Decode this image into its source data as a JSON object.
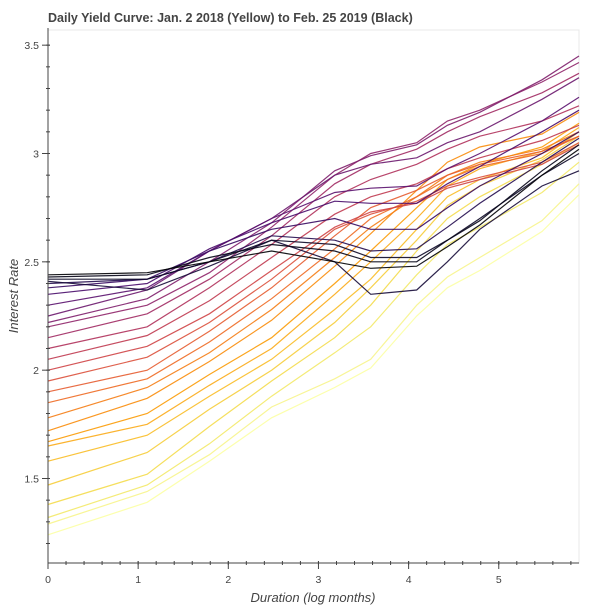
{
  "chart_data": {
    "type": "line",
    "title": "Daily Yield Curve: Jan. 2 2018 (Yellow) to Feb. 25 2019 (Black)",
    "xlabel": "Duration (log months)",
    "ylabel": "Interest Rate",
    "xlim": [
      0,
      5.89
    ],
    "ylim": [
      1.11,
      3.57
    ],
    "x_ticks": [
      "0",
      "1",
      "2",
      "3",
      "4",
      "5"
    ],
    "y_ticks": [
      "1.5",
      "2",
      "2.5",
      "3",
      "3.5"
    ],
    "grid": false,
    "legend": "none",
    "x": [
      0,
      1.1,
      1.79,
      2.48,
      3.18,
      3.58,
      4.09,
      4.43,
      4.79,
      5.48,
      5.89
    ],
    "series": [
      {
        "color": "#fcffa4",
        "values": [
          1.24,
          1.39,
          1.58,
          1.78,
          1.92,
          2.01,
          2.25,
          2.38,
          2.46,
          2.64,
          2.81
        ]
      },
      {
        "color": "#f7f48c",
        "values": [
          1.29,
          1.44,
          1.61,
          1.83,
          1.96,
          2.05,
          2.3,
          2.43,
          2.52,
          2.69,
          2.86
        ]
      },
      {
        "color": "#f3e968",
        "values": [
          1.32,
          1.47,
          1.66,
          1.88,
          2.08,
          2.2,
          2.44,
          2.58,
          2.66,
          2.82,
          2.96
        ]
      },
      {
        "color": "#f4dc4d",
        "values": [
          1.38,
          1.52,
          1.74,
          1.95,
          2.15,
          2.3,
          2.55,
          2.7,
          2.8,
          2.95,
          3.05
        ]
      },
      {
        "color": "#f6cd3a",
        "values": [
          1.47,
          1.62,
          1.82,
          2.0,
          2.22,
          2.38,
          2.6,
          2.76,
          2.85,
          2.97,
          3.08
        ]
      },
      {
        "color": "#f9bd26",
        "values": [
          1.58,
          1.7,
          1.88,
          2.05,
          2.28,
          2.42,
          2.65,
          2.8,
          2.88,
          2.98,
          3.1
        ]
      },
      {
        "color": "#fbab18",
        "values": [
          1.65,
          1.75,
          1.93,
          2.1,
          2.35,
          2.5,
          2.7,
          2.85,
          2.93,
          3.01,
          3.12
        ]
      },
      {
        "color": "#fb9b06",
        "values": [
          1.67,
          1.8,
          1.98,
          2.15,
          2.4,
          2.55,
          2.75,
          2.88,
          2.95,
          3.03,
          3.14
        ]
      },
      {
        "color": "#f98c0a",
        "values": [
          1.72,
          1.87,
          2.04,
          2.23,
          2.48,
          2.63,
          2.83,
          2.96,
          3.03,
          3.09,
          3.19
        ]
      },
      {
        "color": "#f57d15",
        "values": [
          1.78,
          1.92,
          2.08,
          2.28,
          2.52,
          2.66,
          2.8,
          2.9,
          2.96,
          3.02,
          3.1
        ]
      },
      {
        "color": "#ee6a24",
        "values": [
          1.85,
          1.96,
          2.13,
          2.33,
          2.56,
          2.7,
          2.8,
          2.88,
          2.94,
          3.0,
          3.08
        ]
      },
      {
        "color": "#e55c30",
        "values": [
          1.9,
          2.0,
          2.18,
          2.38,
          2.62,
          2.75,
          2.83,
          2.9,
          2.95,
          3.01,
          3.08
        ]
      },
      {
        "color": "#db503b",
        "values": [
          1.95,
          2.06,
          2.22,
          2.42,
          2.65,
          2.72,
          2.78,
          2.85,
          2.89,
          2.96,
          3.05
        ]
      },
      {
        "color": "#cf4446",
        "values": [
          2.0,
          2.11,
          2.26,
          2.46,
          2.66,
          2.73,
          2.77,
          2.84,
          2.88,
          2.95,
          3.04
        ]
      },
      {
        "color": "#c03a50",
        "values": [
          2.05,
          2.16,
          2.32,
          2.52,
          2.72,
          2.8,
          2.86,
          2.93,
          2.98,
          3.06,
          3.13
        ]
      },
      {
        "color": "#b0315b",
        "values": [
          2.1,
          2.2,
          2.38,
          2.58,
          2.8,
          2.88,
          2.95,
          3.02,
          3.08,
          3.15,
          3.22
        ]
      },
      {
        "color": "#a12a63",
        "values": [
          2.15,
          2.26,
          2.42,
          2.62,
          2.86,
          2.95,
          3.02,
          3.1,
          3.17,
          3.28,
          3.37
        ]
      },
      {
        "color": "#8f2469",
        "values": [
          2.2,
          2.3,
          2.45,
          2.66,
          2.9,
          3.0,
          3.05,
          3.15,
          3.2,
          3.33,
          3.42
        ]
      },
      {
        "color": "#7e1e6c",
        "values": [
          2.22,
          2.33,
          2.5,
          2.68,
          2.92,
          2.99,
          3.04,
          3.13,
          3.19,
          3.34,
          3.45
        ]
      },
      {
        "color": "#6c186e",
        "values": [
          2.25,
          2.37,
          2.55,
          2.7,
          2.9,
          2.95,
          2.98,
          3.05,
          3.1,
          3.25,
          3.35
        ]
      },
      {
        "color": "#5a116e",
        "values": [
          2.3,
          2.38,
          2.55,
          2.7,
          2.82,
          2.84,
          2.85,
          2.93,
          3.0,
          3.15,
          3.26
        ]
      },
      {
        "color": "#480b6a",
        "values": [
          2.35,
          2.4,
          2.56,
          2.68,
          2.78,
          2.77,
          2.77,
          2.86,
          2.94,
          3.1,
          3.2
        ]
      },
      {
        "color": "#360961",
        "values": [
          2.38,
          2.42,
          2.55,
          2.65,
          2.7,
          2.65,
          2.65,
          2.75,
          2.85,
          3.0,
          3.1
        ]
      },
      {
        "color": "#240c4f",
        "values": [
          2.4,
          2.42,
          2.5,
          2.62,
          2.6,
          2.55,
          2.56,
          2.66,
          2.77,
          2.96,
          3.07
        ]
      },
      {
        "color": "#160b39",
        "values": [
          2.41,
          2.37,
          2.48,
          2.6,
          2.5,
          2.35,
          2.37,
          2.5,
          2.65,
          2.85,
          2.92
        ]
      },
      {
        "color": "#0c0826",
        "values": [
          2.42,
          2.42,
          2.5,
          2.6,
          2.58,
          2.52,
          2.52,
          2.6,
          2.7,
          2.9,
          3.0
        ]
      },
      {
        "color": "#050417",
        "values": [
          2.43,
          2.44,
          2.52,
          2.58,
          2.55,
          2.5,
          2.5,
          2.6,
          2.69,
          2.92,
          3.04
        ]
      },
      {
        "color": "#000004",
        "values": [
          2.44,
          2.45,
          2.5,
          2.55,
          2.5,
          2.47,
          2.48,
          2.57,
          2.67,
          2.9,
          3.02
        ]
      }
    ]
  }
}
